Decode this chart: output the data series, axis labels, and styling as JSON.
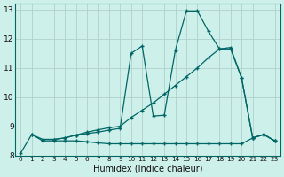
{
  "xlabel": "Humidex (Indice chaleur)",
  "xlim": [
    -0.5,
    23.5
  ],
  "ylim": [
    8,
    13.2
  ],
  "yticks": [
    8,
    9,
    10,
    11,
    12,
    13
  ],
  "xticks": [
    0,
    1,
    2,
    3,
    4,
    5,
    6,
    7,
    8,
    9,
    10,
    11,
    12,
    13,
    14,
    15,
    16,
    17,
    18,
    19,
    20,
    21,
    22,
    23
  ],
  "bg_color": "#cef0ea",
  "grid_color": "#b0d0cc",
  "line_color": "#006666",
  "line1_x": [
    0,
    1,
    2,
    3,
    4,
    5,
    6,
    7,
    8,
    9,
    10,
    11,
    12,
    13,
    14,
    15,
    16,
    17,
    18,
    19,
    20,
    21,
    22,
    23
  ],
  "line1_y": [
    8.08,
    8.72,
    8.5,
    8.5,
    8.5,
    8.5,
    8.47,
    8.43,
    8.4,
    8.4,
    8.4,
    8.4,
    8.4,
    8.4,
    8.4,
    8.4,
    8.4,
    8.4,
    8.4,
    8.4,
    8.4,
    8.6,
    8.72,
    8.5
  ],
  "line2_x": [
    1,
    2,
    3,
    4,
    5,
    6,
    7,
    8,
    9,
    10,
    11,
    12,
    13,
    14,
    15,
    16,
    17,
    18,
    19,
    20,
    21,
    22,
    23
  ],
  "line2_y": [
    8.72,
    8.55,
    8.55,
    8.6,
    8.7,
    8.75,
    8.8,
    8.87,
    8.93,
    11.5,
    11.75,
    9.35,
    9.38,
    11.6,
    12.95,
    12.95,
    12.25,
    11.65,
    11.7,
    10.65,
    8.6,
    8.72,
    8.5
  ],
  "line3_x": [
    2,
    3,
    4,
    5,
    6,
    7,
    8,
    9,
    10,
    11,
    12,
    13,
    14,
    15,
    16,
    17,
    18,
    19,
    20,
    21,
    22,
    23
  ],
  "line3_y": [
    8.55,
    8.55,
    8.6,
    8.7,
    8.8,
    8.88,
    8.95,
    9.0,
    9.3,
    9.55,
    9.8,
    10.1,
    10.4,
    10.7,
    11.0,
    11.35,
    11.65,
    11.65,
    10.65,
    8.6,
    8.72,
    8.5
  ]
}
